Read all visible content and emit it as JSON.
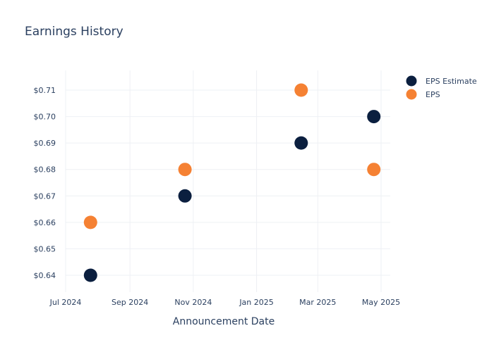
{
  "colors": {
    "eps_estimate": "#0b1f3f",
    "eps": "#f58133",
    "grid": "#eef0f4",
    "text": "#2a3f5f"
  },
  "chart_data": {
    "type": "scatter",
    "title": "Earnings History",
    "xlabel": "Announcement Date",
    "ylabel": "",
    "x_axis_type": "date",
    "xlim": [
      "2024-06-20",
      "2025-05-26"
    ],
    "ylim": [
      0.6325,
      0.7175
    ],
    "x_ticks": [
      {
        "value": "2024-07-01",
        "label": "Jul 2024"
      },
      {
        "value": "2024-09-01",
        "label": "Sep 2024"
      },
      {
        "value": "2024-11-01",
        "label": "Nov 2024"
      },
      {
        "value": "2025-01-01",
        "label": "Jan 2025"
      },
      {
        "value": "2025-03-01",
        "label": "Mar 2025"
      },
      {
        "value": "2025-05-01",
        "label": "May 2025"
      }
    ],
    "y_ticks": [
      {
        "value": 0.64,
        "label": "$0.64"
      },
      {
        "value": 0.65,
        "label": "$0.65"
      },
      {
        "value": 0.66,
        "label": "$0.66"
      },
      {
        "value": 0.67,
        "label": "$0.67"
      },
      {
        "value": 0.68,
        "label": "$0.68"
      },
      {
        "value": 0.69,
        "label": "$0.69"
      },
      {
        "value": 0.7,
        "label": "$0.70"
      },
      {
        "value": 0.71,
        "label": "$0.71"
      }
    ],
    "grid": true,
    "legend_position": "top-right",
    "series": [
      {
        "name": "EPS Estimate",
        "color": "#0b1f3f",
        "points": [
          {
            "x": "2024-07-25",
            "y": 0.64
          },
          {
            "x": "2024-10-24",
            "y": 0.67
          },
          {
            "x": "2025-02-13",
            "y": 0.69
          },
          {
            "x": "2025-04-24",
            "y": 0.7
          }
        ]
      },
      {
        "name": "EPS",
        "color": "#f58133",
        "points": [
          {
            "x": "2024-07-25",
            "y": 0.66
          },
          {
            "x": "2024-10-24",
            "y": 0.68
          },
          {
            "x": "2025-02-13",
            "y": 0.71
          },
          {
            "x": "2025-04-24",
            "y": 0.68
          }
        ]
      }
    ]
  }
}
